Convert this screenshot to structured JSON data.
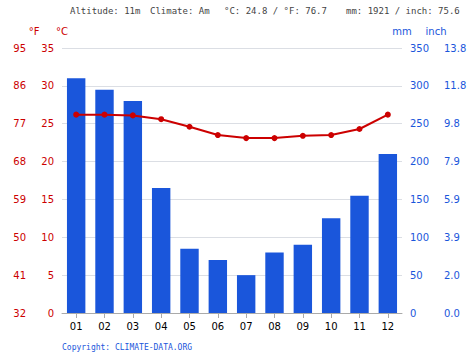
{
  "chart_data": {
    "type": "bar",
    "categories": [
      "01",
      "02",
      "03",
      "04",
      "05",
      "06",
      "07",
      "08",
      "09",
      "10",
      "11",
      "12"
    ],
    "series": [
      {
        "type": "bar",
        "color": "#1a56db",
        "axis": "y2",
        "values": [
          310,
          295,
          280,
          165,
          85,
          70,
          50,
          80,
          90,
          125,
          155,
          210
        ]
      },
      {
        "type": "line",
        "color": "#cc0000",
        "marker": "circle",
        "values": [
          26.2,
          26.2,
          26.1,
          25.6,
          24.6,
          23.5,
          23.1,
          23.1,
          23.4,
          23.5,
          24.3,
          26.2
        ]
      }
    ],
    "ylabel": "°C",
    "ylim": [
      0,
      35
    ],
    "yticks": [
      0,
      5,
      10,
      15,
      20,
      25,
      30,
      35
    ],
    "y2label": "mm",
    "y2lim": [
      0,
      350
    ],
    "y2ticks": [
      0,
      50,
      100,
      150,
      200,
      250,
      300,
      350
    ],
    "y3label": "°F",
    "y3lim": [
      0,
      35
    ],
    "y3ticks": [
      {
        "value": 0,
        "label": "32"
      },
      {
        "value": 5,
        "label": "41"
      },
      {
        "value": 10,
        "label": "50"
      },
      {
        "value": 15,
        "label": "59"
      },
      {
        "value": 20,
        "label": "68"
      },
      {
        "value": 25,
        "label": "77"
      },
      {
        "value": 30,
        "label": "86"
      },
      {
        "value": 35,
        "label": "95"
      }
    ],
    "y4label": "inch",
    "y4lim": [
      0,
      350
    ],
    "y4ticks": [
      {
        "value": 0,
        "label": "0.0"
      },
      {
        "value": 50,
        "label": "2.0"
      },
      {
        "value": 100,
        "label": "3.9"
      },
      {
        "value": 150,
        "label": "5.9"
      },
      {
        "value": 200,
        "label": "7.9"
      },
      {
        "value": 250,
        "label": "9.8"
      },
      {
        "value": 300,
        "label": "11.8"
      },
      {
        "value": 350,
        "label": "13.8"
      }
    ],
    "grid": true,
    "annotations": [
      "Altitude: 11m",
      "Climate: Am",
      "°C: 24.8 / °F: 76.7",
      "mm: 1921 / inch: 75.6",
      "Copyright: CLIMATE-DATA.ORG"
    ]
  }
}
